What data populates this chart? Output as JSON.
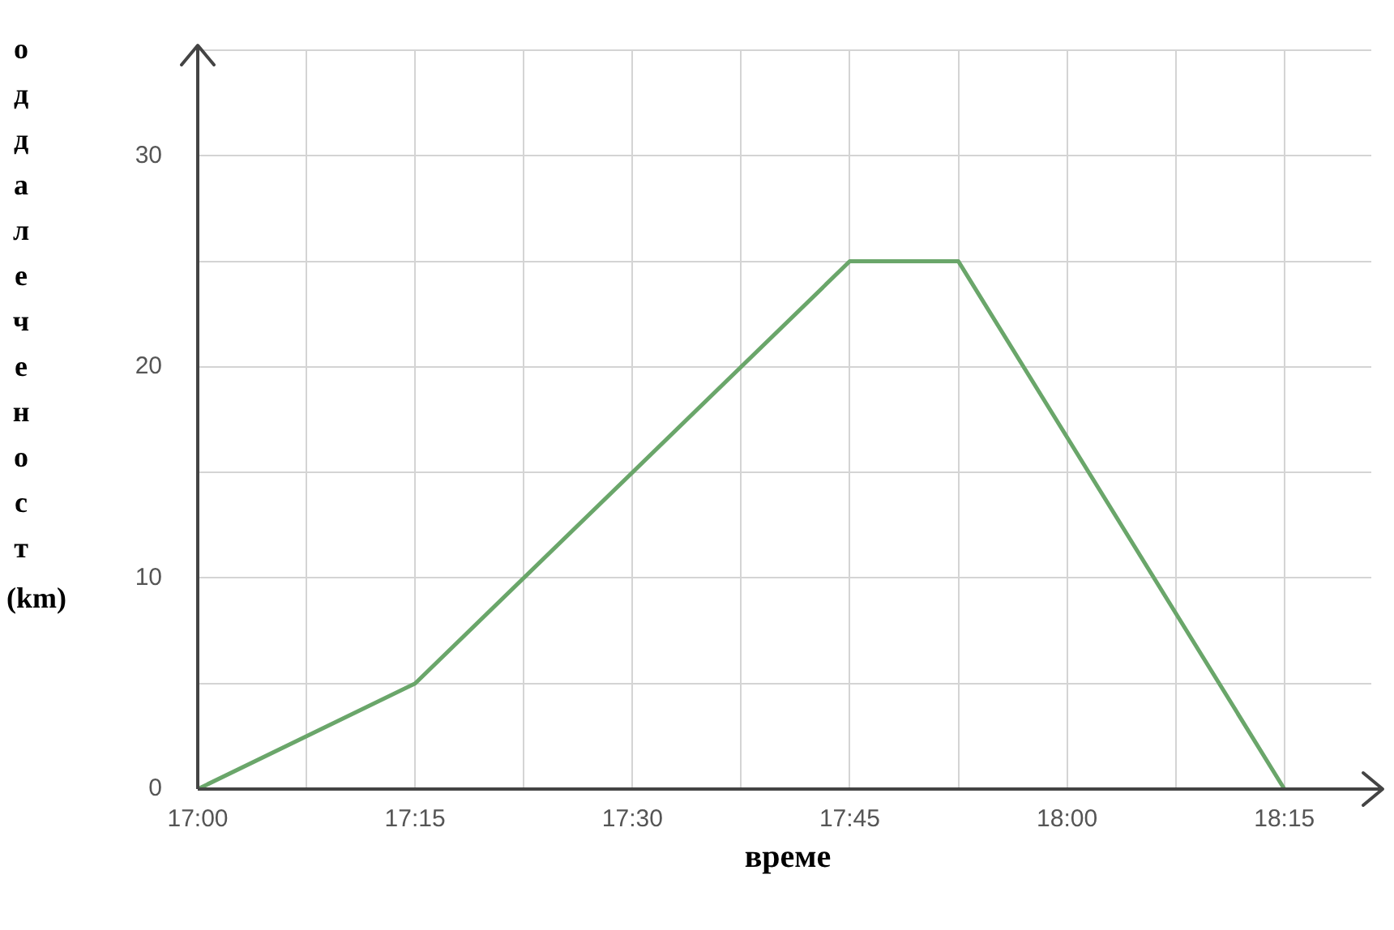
{
  "chart_data": {
    "type": "line",
    "xlabel": "време",
    "ylabel": "оддалеченост (km)",
    "x": [
      17,
      17.25,
      17.75,
      17.875,
      18.25
    ],
    "series": [
      {
        "color": "#6aa66a",
        "values": [
          0,
          5,
          25,
          25,
          0
        ]
      }
    ],
    "xlim": [
      17,
      18.35
    ],
    "xticks": [
      {
        "value": 17,
        "label": "17:00"
      },
      {
        "value": 17.125,
        "label": null
      },
      {
        "value": 17.25,
        "label": "17:15"
      },
      {
        "value": 17.375,
        "label": null
      },
      {
        "value": 17.5,
        "label": "17:30"
      },
      {
        "value": 17.625,
        "label": null
      },
      {
        "value": 17.75,
        "label": "17:45"
      },
      {
        "value": 17.875,
        "label": null
      },
      {
        "value": 18,
        "label": "18:00"
      },
      {
        "value": 18.125,
        "label": null
      },
      {
        "value": 18.25,
        "label": "18:15"
      }
    ],
    "ylim": [
      0,
      35
    ],
    "yticks": [
      0,
      {
        "value": 5,
        "label": null
      },
      10,
      {
        "value": 15,
        "label": null
      },
      20,
      {
        "value": 25,
        "label": null
      },
      30,
      {
        "value": 35,
        "label": null
      }
    ],
    "grid": true,
    "legend": false,
    "marker": "none",
    "line_style": "solid"
  }
}
